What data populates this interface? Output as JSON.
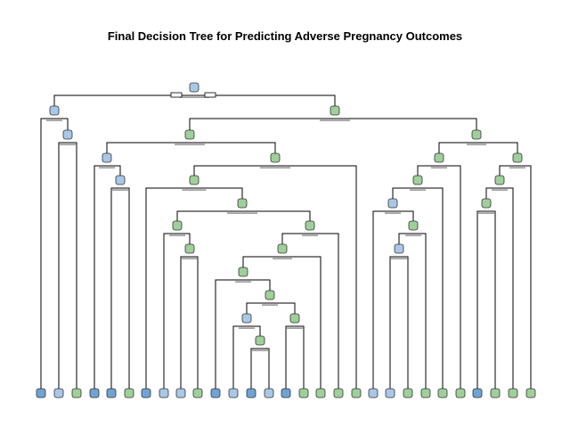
{
  "title": "Final Decision Tree for Predicting Adverse Pregnancy Outcomes",
  "colors": {
    "class_a": "#a9c7e6",
    "class_a_strong": "#6fa3d3",
    "class_b": "#9fcf9a",
    "class_b_strong": "#6db36d",
    "edge": "#000000"
  },
  "tree": {
    "root": {
      "fill": "class_a"
    },
    "leaves": [
      "class_a_strong",
      "class_a",
      "class_b",
      "class_a_strong",
      "class_a_strong",
      "class_b",
      "class_a_strong",
      "class_a",
      "class_a",
      "class_b",
      "class_a_strong",
      "class_a",
      "class_a_strong",
      "class_a",
      "class_a_strong",
      "class_b",
      "class_b",
      "class_b",
      "class_b",
      "class_a",
      "class_a",
      "class_b",
      "class_b",
      "class_b",
      "class_b",
      "class_a_strong",
      "class_b",
      "class_b",
      "class_b"
    ]
  }
}
